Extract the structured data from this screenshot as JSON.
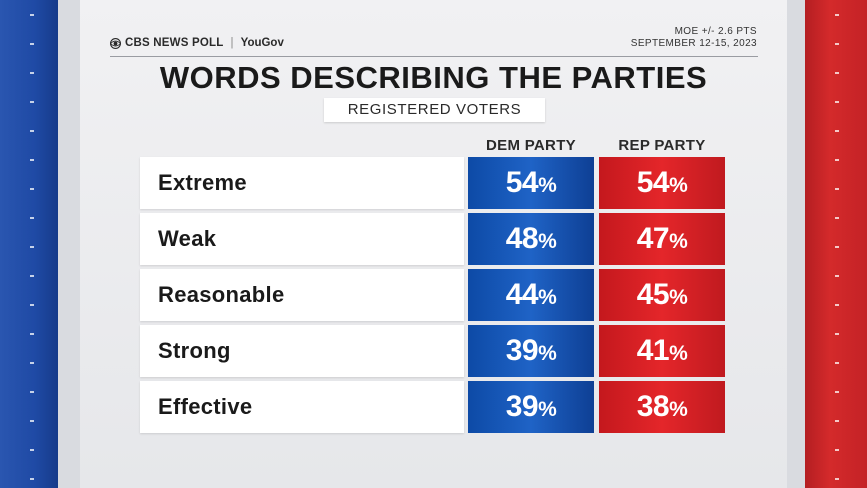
{
  "brand": {
    "poll_label": "CBS NEWS POLL",
    "partner": "YouGov"
  },
  "moe": {
    "line1": "MOE +/- 2.6 PTS",
    "line2": "SEPTEMBER 12-15, 2023"
  },
  "title": "WORDS DESCRIBING THE PARTIES",
  "subtitle": "REGISTERED VOTERS",
  "colors": {
    "dem": "#1f5dbf",
    "rep": "#d9242a"
  },
  "chart_data": {
    "type": "table",
    "title": "WORDS DESCRIBING THE PARTIES",
    "subtitle": "REGISTERED VOTERS",
    "columns": [
      "DEM PARTY",
      "REP PARTY"
    ],
    "categories": [
      "Extreme",
      "Weak",
      "Reasonable",
      "Strong",
      "Effective"
    ],
    "series": [
      {
        "name": "DEM PARTY",
        "values": [
          54,
          48,
          44,
          39,
          39
        ],
        "color": "#1f5dbf"
      },
      {
        "name": "REP PARTY",
        "values": [
          54,
          47,
          45,
          41,
          38
        ],
        "color": "#d9242a"
      }
    ],
    "unit": "%"
  }
}
